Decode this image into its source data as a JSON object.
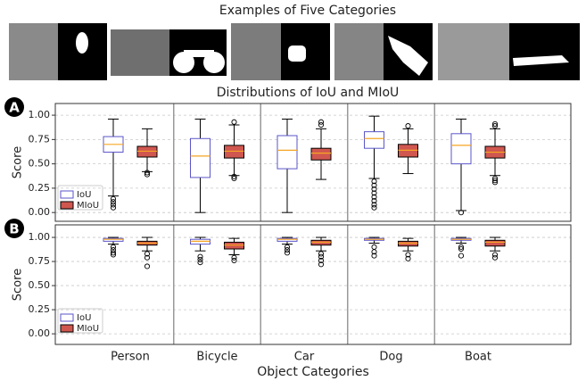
{
  "header": {
    "title": "Examples of Five Categories"
  },
  "chart_data": {
    "type": "box",
    "categories": [
      "Person",
      "Bicycle",
      "Car",
      "Dog",
      "Boat"
    ],
    "xlabel": "Object Categories",
    "panels": [
      {
        "label": "A",
        "title": "Distributions of IoU and MIoU",
        "ylabel": "Score",
        "ylim": [
          -0.09,
          1.12
        ],
        "yticks": [
          {
            "value": 0,
            "label": "0.00"
          },
          {
            "value": 0.25,
            "label": "0.25"
          },
          {
            "value": 0.5,
            "label": "0.50"
          },
          {
            "value": 0.75,
            "label": "0.75"
          },
          {
            "value": 1,
            "label": "1.00"
          }
        ],
        "grid": true,
        "legend": "lower left",
        "series": [
          {
            "name": "IoU",
            "color": "#5a55c8",
            "fill": "#ffffff",
            "values": [
              {
                "min": 0.17,
                "q1": 0.62,
                "median": 0.7,
                "q3": 0.78,
                "max": 0.96,
                "outliers": [
                  0.14,
                  0.11,
                  0.08,
                  0.05
                ]
              },
              {
                "min": 0,
                "q1": 0.36,
                "median": 0.58,
                "q3": 0.76,
                "max": 0.96,
                "outliers": []
              },
              {
                "min": 0,
                "q1": 0.45,
                "median": 0.64,
                "q3": 0.79,
                "max": 0.96,
                "outliers": []
              },
              {
                "min": 0.35,
                "q1": 0.66,
                "median": 0.76,
                "q3": 0.83,
                "max": 0.99,
                "outliers": [
                  0.32,
                  0.28,
                  0.24,
                  0.2,
                  0.16,
                  0.12,
                  0.08,
                  0.05
                ]
              },
              {
                "min": 0.02,
                "q1": 0.5,
                "median": 0.69,
                "q3": 0.81,
                "max": 0.96,
                "outliers": [
                  0
                ]
              }
            ]
          },
          {
            "name": "MIoU",
            "color": "#d0574f",
            "fill": "#d0574f",
            "values": [
              {
                "min": 0.42,
                "q1": 0.57,
                "median": 0.63,
                "q3": 0.68,
                "max": 0.86,
                "outliers": [
                  0.41,
                  0.39
                ]
              },
              {
                "min": 0.38,
                "q1": 0.56,
                "median": 0.63,
                "q3": 0.69,
                "max": 0.9,
                "outliers": [
                  0.93,
                  0.37,
                  0.35
                ]
              },
              {
                "min": 0.34,
                "q1": 0.54,
                "median": 0.61,
                "q3": 0.66,
                "max": 0.86,
                "outliers": [
                  0.9,
                  0.93
                ]
              },
              {
                "min": 0.4,
                "q1": 0.57,
                "median": 0.64,
                "q3": 0.7,
                "max": 0.86,
                "outliers": [
                  0.89
                ]
              },
              {
                "min": 0.38,
                "q1": 0.56,
                "median": 0.62,
                "q3": 0.68,
                "max": 0.86,
                "outliers": [
                  0.89,
                  0.91,
                  0.35,
                  0.33,
                  0.31
                ]
              }
            ]
          }
        ]
      },
      {
        "label": "B",
        "ylabel": "Score",
        "ylim": [
          -0.11,
          1.13
        ],
        "yticks": [
          {
            "value": 0,
            "label": "0.00"
          },
          {
            "value": 0.25,
            "label": "0.25"
          },
          {
            "value": 0.5,
            "label": "0.50"
          },
          {
            "value": 0.75,
            "label": "0.75"
          },
          {
            "value": 1,
            "label": "1.00"
          }
        ],
        "grid": true,
        "legend": "lower left",
        "series": [
          {
            "name": "IoU",
            "color": "#5a55c8",
            "fill": "#ffffff",
            "values": [
              {
                "min": 0.93,
                "q1": 0.96,
                "median": 0.98,
                "q3": 0.99,
                "max": 1.0,
                "outliers": [
                  0.9,
                  0.87,
                  0.84,
                  0.82
                ]
              },
              {
                "min": 0.86,
                "q1": 0.93,
                "median": 0.96,
                "q3": 0.98,
                "max": 1.0,
                "outliers": [
                  0.8,
                  0.77,
                  0.74
                ]
              },
              {
                "min": 0.93,
                "q1": 0.96,
                "median": 0.98,
                "q3": 0.99,
                "max": 1.0,
                "outliers": [
                  0.9,
                  0.87,
                  0.84
                ]
              },
              {
                "min": 0.94,
                "q1": 0.97,
                "median": 0.98,
                "q3": 0.99,
                "max": 1.0,
                "outliers": [
                  0.9,
                  0.85,
                  0.81
                ]
              },
              {
                "min": 0.94,
                "q1": 0.97,
                "median": 0.98,
                "q3": 0.99,
                "max": 1.0,
                "outliers": [
                  0.9,
                  0.88,
                  0.81
                ]
              }
            ]
          },
          {
            "name": "MIoU",
            "color": "#d0574f",
            "fill": "#d0574f",
            "values": [
              {
                "min": 0.86,
                "q1": 0.92,
                "median": 0.94,
                "q3": 0.96,
                "max": 1.0,
                "outliers": [
                  0.83,
                  0.79,
                  0.7
                ]
              },
              {
                "min": 0.82,
                "q1": 0.88,
                "median": 0.92,
                "q3": 0.95,
                "max": 0.99,
                "outliers": [
                  0.79,
                  0.76
                ]
              },
              {
                "min": 0.86,
                "q1": 0.92,
                "median": 0.95,
                "q3": 0.97,
                "max": 1.0,
                "outliers": [
                  0.83,
                  0.8,
                  0.76,
                  0.72
                ]
              },
              {
                "min": 0.86,
                "q1": 0.91,
                "median": 0.94,
                "q3": 0.96,
                "max": 0.99,
                "outliers": [
                  0.82,
                  0.78
                ]
              },
              {
                "min": 0.86,
                "q1": 0.91,
                "median": 0.95,
                "q3": 0.97,
                "max": 1.0,
                "outliers": [
                  0.82,
                  0.79
                ]
              }
            ]
          }
        ]
      }
    ]
  }
}
